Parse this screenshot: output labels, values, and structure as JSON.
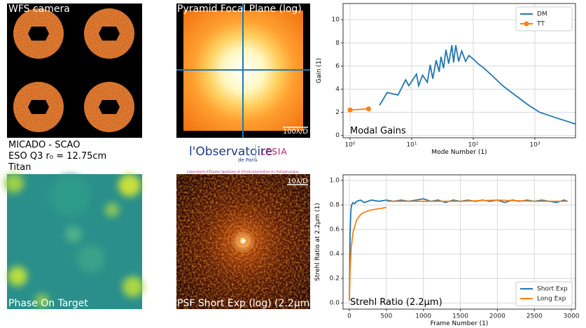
{
  "panels": [
    {
      "title": "WFS camera"
    },
    {
      "title": "Pyramid Focal Plane (log)",
      "scale": "100λ/D"
    },
    {
      "title": "Phase On Target"
    },
    {
      "title": "PSF Short Exp (log) (2.2μm)",
      "scale": "10λ/D"
    }
  ],
  "info": [
    "MICADO - SCAO",
    "ESO Q3 r₀ = 12.75cm",
    "Titan"
  ],
  "logo": {
    "name": "l'Observatoire",
    "sub": "de Paris",
    "lab": "LESIA",
    "caption": "Laboratoire d'Études Spatiales et d'Instrumentation en Astrophysique"
  },
  "chart_data": [
    {
      "type": "line",
      "annotation": "Modal Gains",
      "xlabel": "Mode Number (1)",
      "ylabel": "Gain (1)",
      "xscale": "log",
      "xlim": [
        0.77,
        4570
      ],
      "ylim": [
        -0.2,
        11.4
      ],
      "xticks": [
        {
          "value": 1,
          "label": "10⁰"
        },
        {
          "value": 10,
          "label": "10¹"
        },
        {
          "value": 100,
          "label": "10²"
        },
        {
          "value": 1000,
          "label": "10³"
        }
      ],
      "yticks": [
        0,
        2,
        4,
        6,
        8,
        10
      ],
      "grid": true,
      "legend": "upper right",
      "series": [
        {
          "name": "DM",
          "color": "#1f77b4",
          "x": [
            3,
            4,
            6,
            8,
            9,
            12,
            13,
            15,
            18,
            20,
            22,
            25,
            28,
            30,
            33,
            36,
            40,
            45,
            48,
            52,
            58,
            65,
            75,
            85,
            100,
            120,
            150,
            200,
            300,
            500,
            800,
            1200,
            2000,
            3000,
            4500
          ],
          "values": [
            2.6,
            3.7,
            3.5,
            4.8,
            4.3,
            5.3,
            4.3,
            5.2,
            4.6,
            6.1,
            4.9,
            6.5,
            5.5,
            6.8,
            5.8,
            7.4,
            6.2,
            7.8,
            6.3,
            7.8,
            6.4,
            7.3,
            6.4,
            6.9,
            6.6,
            6.2,
            5.8,
            5.2,
            4.3,
            3.4,
            2.6,
            2.0,
            1.6,
            1.3,
            1.0
          ]
        },
        {
          "name": "TT",
          "color": "#ff7f0e",
          "marker": "circle",
          "x": [
            1,
            2
          ],
          "values": [
            2.2,
            2.3
          ]
        }
      ]
    },
    {
      "type": "line",
      "annotation": "Strehl Ratio (2.2μm)",
      "xlabel": "Frame Number (1)",
      "ylabel": "Strehl Ratio at 2.2μm (1)",
      "xlim": [
        -85,
        3056
      ],
      "ylim": [
        -0.05,
        1.046
      ],
      "xticks": [
        0,
        500,
        1000,
        1500,
        2000,
        2500,
        3000
      ],
      "yticks": [
        {
          "value": 0,
          "label": "0.0"
        },
        0.2,
        0.4,
        0.6,
        0.8,
        {
          "value": 1,
          "label": "1.0"
        }
      ],
      "grid": true,
      "legend": "lower right",
      "series": [
        {
          "name": "Short Exp",
          "color": "#1f77b4",
          "x": [
            0,
            10,
            20,
            30,
            50,
            70,
            100,
            150,
            200,
            300,
            400,
            500,
            600,
            700,
            800,
            900,
            1000,
            1100,
            1200,
            1300,
            1400,
            1500,
            1600,
            1700,
            1800,
            1900,
            2000,
            2100,
            2200,
            2300,
            2400,
            2500,
            2600,
            2700,
            2800,
            2900,
            2950
          ],
          "values": [
            0.02,
            0.55,
            0.75,
            0.8,
            0.82,
            0.81,
            0.83,
            0.84,
            0.82,
            0.84,
            0.83,
            0.84,
            0.83,
            0.84,
            0.83,
            0.84,
            0.85,
            0.83,
            0.84,
            0.82,
            0.84,
            0.83,
            0.84,
            0.83,
            0.84,
            0.83,
            0.84,
            0.82,
            0.84,
            0.83,
            0.84,
            0.83,
            0.84,
            0.83,
            0.82,
            0.84,
            0.83
          ]
        },
        {
          "name": "Long Exp",
          "color": "#ff7f0e",
          "x": [
            0,
            10,
            25,
            50,
            100,
            150,
            200,
            300,
            400,
            500,
            505,
            510,
            1000,
            1500,
            2000,
            2500,
            2950
          ],
          "values": [
            0.02,
            0.25,
            0.45,
            0.58,
            0.68,
            0.72,
            0.74,
            0.76,
            0.77,
            0.78,
            null,
            0.83,
            0.83,
            0.83,
            0.84,
            0.83,
            0.83
          ]
        }
      ]
    }
  ]
}
